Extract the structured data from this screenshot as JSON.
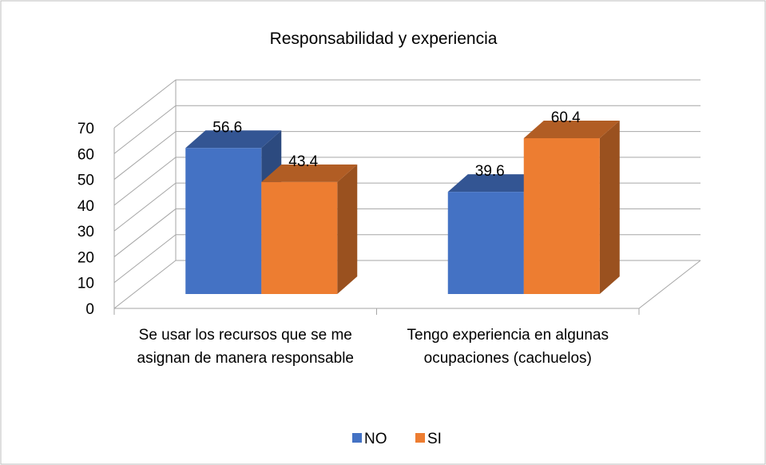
{
  "chart_data": {
    "type": "bar3d",
    "title": "Responsabilidad y experiencia",
    "categories": [
      "Se usar los recursos que se me asignan de manera responsable",
      "Tengo experiencia en algunas ocupaciones (cachuelos)"
    ],
    "series": [
      {
        "name": "NO",
        "color": "#4472c4",
        "values": [
          56.6,
          39.6
        ]
      },
      {
        "name": "SI",
        "color": "#ed7d31",
        "values": [
          43.4,
          60.4
        ]
      }
    ],
    "ylim": [
      0,
      70
    ],
    "yticks": [
      0,
      10,
      20,
      30,
      40,
      50,
      60,
      70
    ],
    "grid": true,
    "legend": "bottom"
  }
}
